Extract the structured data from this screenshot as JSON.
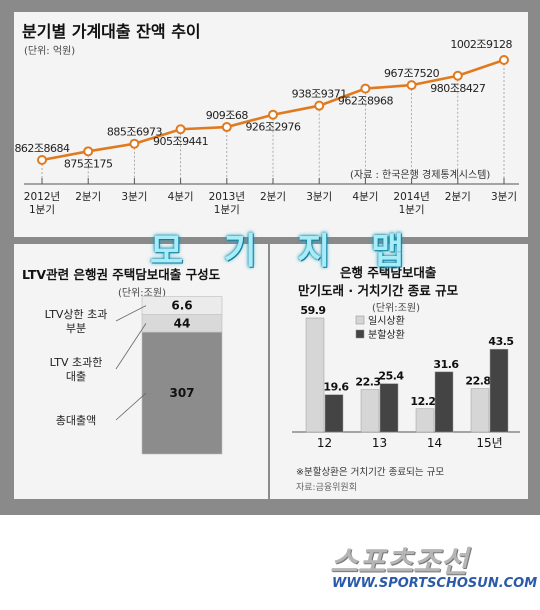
{
  "chart_data": [
    {
      "type": "line",
      "title": "분기별 가계대출 잔액 추이",
      "unit": "(단위: 억원)",
      "source": "(자료 : 한국은행 경제통계시스템)",
      "categories": [
        "2012년 1분기",
        "2분기",
        "3분기",
        "4분기",
        "2013년 1분기",
        "2분기",
        "3분기",
        "4분기",
        "2014년 1분기",
        "2분기",
        "3분기"
      ],
      "tick_labels": [
        [
          "2012년",
          "1분기"
        ],
        [
          "2분기"
        ],
        [
          "3분기"
        ],
        [
          "4분기"
        ],
        [
          "2013년",
          "1분기"
        ],
        [
          "2분기"
        ],
        [
          "3분기"
        ],
        [
          "4분기"
        ],
        [
          "2014년",
          "1분기"
        ],
        [
          "2분기"
        ],
        [
          "3분기"
        ]
      ],
      "values": [
        8628684,
        8750175,
        8856973,
        9059441,
        9090068,
        9262976,
        9389371,
        9628968,
        9677520,
        9808427,
        10029128
      ],
      "value_labels": [
        "862조8684",
        "875조175",
        "885조6973",
        "905조9441",
        "909조68",
        "926조2976",
        "938조9371",
        "962조8968",
        "967조7520",
        "980조8427",
        "1002조9128"
      ],
      "line_color": "#e07a1f"
    },
    {
      "type": "bar",
      "stacked": true,
      "title": "LTV관련 은행권 주택담보대출 구성도",
      "unit": "(단위:조원)",
      "segments": [
        {
          "label": "총대출액",
          "value": 307,
          "color": "#8c8c8c"
        },
        {
          "label": "LTV 초과한 대출",
          "label_lines": [
            "LTV 초과한",
            "대출"
          ],
          "value": 44,
          "color": "#d9d9d9"
        },
        {
          "label": "LTV상한 초과 부분",
          "label_lines": [
            "LTV상한 초과",
            "부분"
          ],
          "value": 6.6,
          "color": "#ebebeb"
        }
      ],
      "value_labels": [
        "307",
        "44",
        "6.6"
      ]
    },
    {
      "type": "bar",
      "title": "은행 주택담보대출 만기도래 · 거치기간 종료 규모",
      "title_lines": [
        "은행 주택담보대출",
        "만기도래 · 거치기간 종료 규모"
      ],
      "unit": "(단위:조원)",
      "categories": [
        "12",
        "13",
        "14",
        "15년"
      ],
      "series": [
        {
          "name": "일시상환",
          "values": [
            59.9,
            22.3,
            12.2,
            22.8
          ],
          "color": "#d6d6d6"
        },
        {
          "name": "분할상환",
          "values": [
            19.6,
            25.4,
            31.6,
            43.5
          ],
          "color": "#444444"
        }
      ],
      "ylim": [
        0,
        62
      ],
      "footnote": "※분할상환은 거치기간 종료되는 규모",
      "source": "자료:금융위원회"
    }
  ],
  "watermark": "모 기 지 맵",
  "logo": {
    "text": "스포츠조선",
    "url": "WWW.SPORTSCHOSUN.COM",
    "url_color": "#2b5aa8"
  }
}
